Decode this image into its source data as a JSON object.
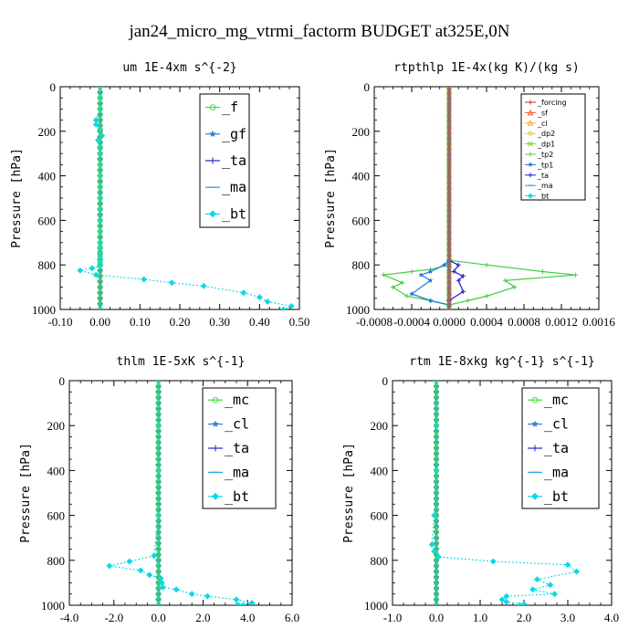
{
  "suptitle": "jan24_micro_mg_vtrmi_factorm  BUDGET at325E,0N",
  "chart_data": [
    {
      "type": "line",
      "title": "um  1E-4xm s^{-2}",
      "ylabel": "Pressure [hPa]",
      "xlim": [
        -0.1,
        0.5
      ],
      "ylim": [
        1000,
        0
      ],
      "xticks": [
        "-0.10",
        "0.00",
        "0.10",
        "0.20",
        "0.30",
        "0.40",
        "0.50"
      ],
      "xtick_values": [
        -0.1,
        0.0,
        0.1,
        0.2,
        0.3,
        0.4,
        0.5
      ],
      "yticks": [
        "0",
        "200",
        "400",
        "600",
        "800",
        "1000"
      ],
      "ytick_values": [
        0,
        200,
        400,
        600,
        800,
        1000
      ],
      "legend_position": "top-right",
      "legend_size": "large",
      "series": [
        {
          "name": "_f",
          "color": "#44dd44",
          "marker": "circle-open",
          "x": [
            0.0,
            0.0
          ],
          "y": [
            0,
            1000
          ]
        },
        {
          "name": "_gf",
          "color": "#2f7fd8",
          "marker": "star",
          "x": [
            0.0,
            0.0
          ],
          "y": [
            0,
            1000
          ]
        },
        {
          "name": "_ta",
          "color": "#2222cc",
          "marker": "plus",
          "x": [
            0.0,
            0.0
          ],
          "y": [
            0,
            1000
          ]
        },
        {
          "name": "_ma",
          "color": "#2aa0e8",
          "marker": "dash",
          "x": [
            0.0,
            0.0
          ],
          "y": [
            0,
            1000
          ]
        },
        {
          "name": "_bt",
          "color": "#0bd8e8",
          "marker": "diamond",
          "dashed": true,
          "x": [
            0.0,
            0.0,
            0.0,
            -0.01,
            -0.01,
            0.0,
            0.005,
            -0.005,
            0.0,
            0.0,
            0.0,
            0.0,
            0.0,
            0.0,
            0.0,
            0.0,
            0.0,
            0.0,
            0.0,
            0.0,
            0.0,
            0.0,
            0.0,
            0.0,
            0.0,
            -0.02,
            -0.05,
            -0.01,
            0.11,
            0.18,
            0.26,
            0.36,
            0.4,
            0.42,
            0.48,
            0.46
          ],
          "y": [
            0,
            50,
            100,
            150,
            170,
            190,
            220,
            240,
            270,
            300,
            350,
            400,
            450,
            500,
            550,
            600,
            650,
            700,
            720,
            740,
            760,
            780,
            790,
            800,
            805,
            815,
            825,
            845,
            865,
            880,
            895,
            925,
            945,
            965,
            985,
            1000
          ]
        }
      ]
    },
    {
      "type": "line",
      "title": "rtpthlp  1E-4x(kg K)/(kg s)",
      "ylabel": "Pressure [hPa]",
      "xlim": [
        -0.0008,
        0.0016
      ],
      "ylim": [
        1000,
        0
      ],
      "xticks": [
        "-0.0008",
        "-0.0004",
        "0.0000",
        "0.0004",
        "0.0008",
        "0.0012",
        "0.0016"
      ],
      "xtick_values": [
        -0.0008,
        -0.0004,
        0.0,
        0.0004,
        0.0008,
        0.0012,
        0.0016
      ],
      "yticks": [
        "0",
        "200",
        "400",
        "600",
        "800",
        "1000"
      ],
      "ytick_values": [
        0,
        200,
        400,
        600,
        800,
        1000
      ],
      "legend_position": "top-right",
      "legend_size": "small",
      "series": [
        {
          "name": "_forcing",
          "color": "#dd2222",
          "marker": "plus",
          "x": [
            0.0,
            0.0
          ],
          "y": [
            0,
            1000
          ]
        },
        {
          "name": "_sf",
          "color": "#ff5522",
          "marker": "triangle",
          "x": [
            0.0,
            0.0
          ],
          "y": [
            0,
            1000
          ]
        },
        {
          "name": "_cl",
          "color": "#ffaa22",
          "marker": "triangle",
          "x": [
            0.0,
            0.0
          ],
          "y": [
            0,
            1000
          ]
        },
        {
          "name": "_dp2",
          "color": "#eecc22",
          "marker": "circle-open",
          "x": [
            0.0,
            0.0
          ],
          "y": [
            0,
            1000
          ]
        },
        {
          "name": "_dp1",
          "color": "#88cc22",
          "marker": "x",
          "x": [
            0.0,
            0.0
          ],
          "y": [
            0,
            1000
          ]
        },
        {
          "name": "_tp2",
          "color": "#44cc44",
          "marker": "plus",
          "x": [
            0.0,
            0.0,
            0.0,
            2e-05,
            0.0004,
            0.001,
            0.00135,
            0.0006,
            0.0007,
            0.0004,
            0.0002,
            0.0,
            -0.0002,
            -0.00045,
            -0.0006,
            -0.0005,
            -0.0007,
            -0.0004,
            -0.0002,
            0.0,
            0.0,
            0.0
          ],
          "y": [
            0,
            600,
            760,
            780,
            800,
            830,
            845,
            870,
            900,
            940,
            960,
            980,
            960,
            940,
            900,
            880,
            845,
            830,
            820,
            800,
            780,
            1000
          ]
        },
        {
          "name": "_tp1",
          "color": "#2277dd",
          "marker": "star",
          "x": [
            0.0,
            0.0,
            0.0,
            -5e-05,
            -0.0002,
            -0.0003,
            -0.0002,
            -0.0004,
            -0.0002,
            0.0,
            0.0
          ],
          "y": [
            0,
            600,
            780,
            800,
            830,
            845,
            870,
            930,
            960,
            980,
            1000
          ]
        },
        {
          "name": "_ta",
          "color": "#2222cc",
          "marker": "plus",
          "x": [
            0.0,
            0.0,
            0.0,
            0.0001,
            5e-05,
            0.00015,
            0.0001,
            0.00015,
            0.0,
            0.0
          ],
          "y": [
            0,
            600,
            780,
            800,
            830,
            850,
            870,
            920,
            960,
            1000
          ]
        },
        {
          "name": "_ma",
          "color": "#2aa0e8",
          "marker": "dash",
          "x": [
            0.0,
            0.0
          ],
          "y": [
            0,
            1000
          ]
        },
        {
          "name": "_bt",
          "color": "#0bd8e8",
          "marker": "diamond",
          "x": [
            0.0,
            0.0
          ],
          "y": [
            0,
            1000
          ]
        }
      ]
    },
    {
      "type": "line",
      "title": "thlm  1E-5xK s^{-1}",
      "ylabel": "Pressure [hPa]",
      "xlim": [
        -4.0,
        6.0
      ],
      "ylim": [
        1000,
        0
      ],
      "xticks": [
        "-4.0",
        "-2.0",
        "0.0",
        "2.0",
        "4.0",
        "6.0"
      ],
      "xtick_values": [
        -4.0,
        -2.0,
        0.0,
        2.0,
        4.0,
        6.0
      ],
      "yticks": [
        "0",
        "200",
        "400",
        "600",
        "800",
        "1000"
      ],
      "ytick_values": [
        0,
        200,
        400,
        600,
        800,
        1000
      ],
      "legend_position": "top-right",
      "legend_size": "large",
      "series": [
        {
          "name": "_mc",
          "color": "#44dd44",
          "marker": "circle-open",
          "x": [
            0.0,
            0.0
          ],
          "y": [
            0,
            1000
          ]
        },
        {
          "name": "_cl",
          "color": "#2f7fd8",
          "marker": "star",
          "x": [
            0.0,
            0.0
          ],
          "y": [
            0,
            1000
          ]
        },
        {
          "name": "_ta",
          "color": "#2222cc",
          "marker": "plus",
          "x": [
            0.0,
            0.0
          ],
          "y": [
            0,
            1000
          ]
        },
        {
          "name": "_ma",
          "color": "#2aa0e8",
          "marker": "dash",
          "x": [
            0.0,
            0.0
          ],
          "y": [
            0,
            1000
          ]
        },
        {
          "name": "_bt",
          "color": "#0bd8e8",
          "marker": "diamond",
          "dashed": true,
          "x": [
            0.0,
            0.0,
            0.0,
            0.0,
            -0.2,
            -1.3,
            -2.2,
            -0.8,
            -0.4,
            0.1,
            0.15,
            0.2,
            0.8,
            1.5,
            2.2,
            3.5,
            4.2,
            3.8,
            3.6
          ],
          "y": [
            0,
            200,
            400,
            600,
            780,
            805,
            825,
            845,
            865,
            880,
            900,
            920,
            930,
            950,
            960,
            975,
            990,
            1000,
            1000
          ]
        }
      ]
    },
    {
      "type": "line",
      "title": "rtm  1E-8xkg kg^{-1} s^{-1}",
      "ylabel": "Pressure [hPa]",
      "xlim": [
        -1.0,
        4.0
      ],
      "ylim": [
        1000,
        0
      ],
      "xticks": [
        "-1.0",
        "0.0",
        "1.0",
        "2.0",
        "3.0",
        "4.0"
      ],
      "xtick_values": [
        -1.0,
        0.0,
        1.0,
        2.0,
        3.0,
        4.0
      ],
      "yticks": [
        "0",
        "200",
        "400",
        "600",
        "800",
        "1000"
      ],
      "ytick_values": [
        0,
        200,
        400,
        600,
        800,
        1000
      ],
      "legend_position": "top-right",
      "legend_size": "large",
      "series": [
        {
          "name": "_mc",
          "color": "#44dd44",
          "marker": "circle-open",
          "x": [
            0.0,
            0.0
          ],
          "y": [
            0,
            1000
          ]
        },
        {
          "name": "_cl",
          "color": "#2f7fd8",
          "marker": "star",
          "x": [
            0.0,
            0.0
          ],
          "y": [
            0,
            1000
          ]
        },
        {
          "name": "_ta",
          "color": "#2222cc",
          "marker": "plus",
          "x": [
            0.0,
            0.0
          ],
          "y": [
            0,
            1000
          ]
        },
        {
          "name": "_ma",
          "color": "#2aa0e8",
          "marker": "dash",
          "x": [
            0.0,
            0.0
          ],
          "y": [
            0,
            1000
          ]
        },
        {
          "name": "_bt",
          "color": "#0bd8e8",
          "marker": "diamond",
          "dashed": true,
          "x": [
            0.0,
            0.0,
            0.0,
            -0.05,
            -0.1,
            -0.05,
            0.05,
            1.3,
            3.0,
            3.2,
            2.3,
            2.6,
            2.2,
            2.7,
            1.6,
            1.5,
            1.6,
            2.0,
            1.9
          ],
          "y": [
            0,
            200,
            400,
            600,
            730,
            760,
            785,
            805,
            820,
            850,
            885,
            910,
            930,
            950,
            960,
            975,
            985,
            995,
            1000
          ]
        }
      ]
    }
  ]
}
